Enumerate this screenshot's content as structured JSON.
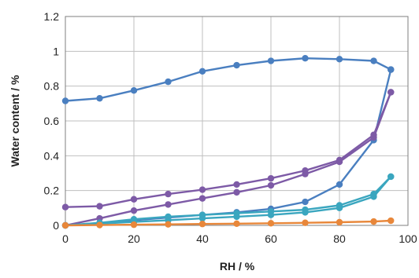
{
  "chart_data": {
    "type": "line",
    "title": "",
    "xlabel": "RH / %",
    "ylabel": "Water content / %",
    "xlim": [
      0,
      100
    ],
    "ylim": [
      0,
      1.2
    ],
    "xticks": [
      0,
      20,
      40,
      60,
      80,
      100
    ],
    "yticks": [
      0,
      0.2,
      0.4,
      0.6,
      0.8,
      1,
      1.2
    ],
    "xtick_labels": [
      "0",
      "20",
      "40",
      "60",
      "80",
      "100"
    ],
    "ytick_labels": [
      "0",
      "0.2",
      "0.4",
      "0.6",
      "0.8",
      "1",
      "1.2"
    ],
    "grid": "vertical and horizontal",
    "legend": "none",
    "series": [
      {
        "color": "#4a7fc0",
        "x": [
          0,
          10,
          20,
          30,
          40,
          50,
          60,
          70,
          80,
          90,
          95
        ],
        "y": [
          0.715,
          0.73,
          0.775,
          0.825,
          0.885,
          0.92,
          0.945,
          0.96,
          0.955,
          0.945,
          0.895
        ]
      },
      {
        "color": "#4a7fc0",
        "x": [
          0,
          10,
          20,
          30,
          40,
          50,
          60,
          70,
          80,
          90,
          95
        ],
        "y": [
          0.0,
          0.01,
          0.03,
          0.045,
          0.06,
          0.075,
          0.095,
          0.135,
          0.235,
          0.49,
          0.895
        ]
      },
      {
        "color": "#7d5aa6",
        "x": [
          0,
          10,
          20,
          30,
          40,
          50,
          60,
          70,
          80,
          90,
          95
        ],
        "y": [
          0.105,
          0.11,
          0.15,
          0.18,
          0.205,
          0.235,
          0.27,
          0.315,
          0.375,
          0.52,
          0.765
        ]
      },
      {
        "color": "#7d5aa6",
        "x": [
          0,
          10,
          20,
          30,
          40,
          50,
          60,
          70,
          80,
          90,
          95
        ],
        "y": [
          0.0,
          0.04,
          0.085,
          0.12,
          0.155,
          0.19,
          0.23,
          0.295,
          0.365,
          0.505,
          0.765
        ]
      },
      {
        "color": "#3aa6bf",
        "x": [
          0,
          10,
          20,
          30,
          40,
          50,
          60,
          70,
          80,
          90,
          95
        ],
        "y": [
          0.0,
          0.015,
          0.035,
          0.05,
          0.06,
          0.07,
          0.08,
          0.09,
          0.115,
          0.18,
          0.28
        ]
      },
      {
        "color": "#3aa6bf",
        "x": [
          0,
          10,
          20,
          30,
          40,
          50,
          60,
          70,
          80,
          90,
          95
        ],
        "y": [
          0.0,
          0.01,
          0.02,
          0.03,
          0.04,
          0.05,
          0.06,
          0.075,
          0.1,
          0.165,
          0.28
        ]
      },
      {
        "color": "#e8873a",
        "x": [
          0,
          10,
          20,
          30,
          40,
          50,
          60,
          70,
          80,
          90,
          95
        ],
        "y": [
          0.0,
          0.002,
          0.004,
          0.006,
          0.008,
          0.01,
          0.012,
          0.015,
          0.018,
          0.022,
          0.027
        ]
      }
    ]
  }
}
